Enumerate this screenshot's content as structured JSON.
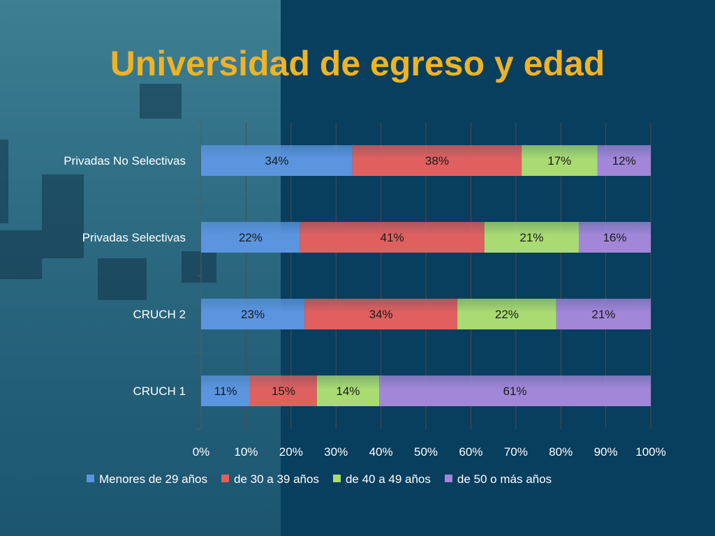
{
  "slide": {
    "title": "Universidad de egreso y edad"
  },
  "chart_data": {
    "type": "bar",
    "orientation": "horizontal",
    "stacked": "percent",
    "categories": [
      "Privadas No Selectivas",
      "Privadas Selectivas",
      "CRUCH 2",
      "CRUCH 1"
    ],
    "series": [
      {
        "name": "Menores de 29 años",
        "color": "#5b95e0",
        "values": [
          34,
          22,
          23,
          11
        ],
        "labels": [
          "34%",
          "22%",
          "23%",
          "11%"
        ]
      },
      {
        "name": "de 30 a 39 años",
        "color": "#e06060",
        "values": [
          38,
          41,
          34,
          15
        ],
        "labels": [
          "38%",
          "41%",
          "34%",
          "15%"
        ]
      },
      {
        "name": "de 40 a 49 años",
        "color": "#a9db72",
        "values": [
          17,
          21,
          22,
          14
        ],
        "labels": [
          "17%",
          "21%",
          "22%",
          "14%"
        ]
      },
      {
        "name": "de 50 o más años",
        "color": "#a287d9",
        "values": [
          12,
          16,
          21,
          61
        ],
        "labels": [
          "12%",
          "16%",
          "21%",
          "61%"
        ]
      }
    ],
    "xlim": [
      0,
      100
    ],
    "x_ticks": [
      "0%",
      "10%",
      "20%",
      "30%",
      "40%",
      "50%",
      "60%",
      "70%",
      "80%",
      "90%",
      "100%"
    ],
    "grid": "vertical",
    "legend": "bottom"
  }
}
